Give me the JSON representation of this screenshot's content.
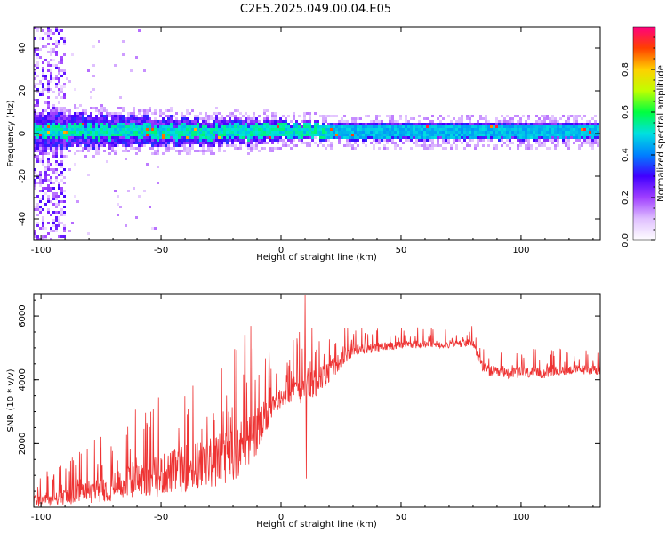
{
  "title": "C2E5.2025.049.00.04.E05",
  "chart_data": [
    {
      "type": "heatmap",
      "name": "spectrogram",
      "xlabel": "Height of straight line (km)",
      "ylabel": "Frequency (Hz)",
      "xlim": [
        -103,
        133
      ],
      "ylim": [
        -50,
        50
      ],
      "x_ticks": [
        -100,
        -50,
        0,
        50,
        100
      ],
      "y_ticks": [
        -40,
        -20,
        0,
        20,
        40
      ],
      "colorbar": {
        "label": "Normalized spectral amplitude",
        "range": [
          0,
          1
        ],
        "ticks": [
          "0.0",
          "0.2",
          "0.4",
          "0.6",
          "0.8"
        ],
        "colors": [
          "#ffffff",
          "#e0c0ff",
          "#a040ff",
          "#4000ff",
          "#0080ff",
          "#00e0e0",
          "#00ff40",
          "#c0ff00",
          "#ffd000",
          "#ff4000",
          "#ff0080"
        ]
      },
      "band": {
        "center_hz": 1,
        "core_width_hz": 6,
        "noise_region_x": [
          -103,
          -90
        ]
      }
    },
    {
      "type": "line",
      "name": "snr",
      "xlabel": "Height of straight line (km)",
      "ylabel": "SNR (10 * v/v)",
      "xlim": [
        -103,
        133
      ],
      "ylim": [
        0,
        6700
      ],
      "x_ticks": [
        -100,
        -50,
        0,
        50,
        100
      ],
      "y_ticks": [
        2000,
        4000,
        6000
      ],
      "color": "#ee3333",
      "envelope": {
        "x": [
          -103,
          -95,
          -90,
          -80,
          -70,
          -60,
          -50,
          -40,
          -30,
          -20,
          -15,
          -10,
          -5,
          0,
          5,
          10,
          15,
          20,
          25,
          30,
          40,
          50,
          60,
          70,
          80,
          82,
          85,
          90,
          100,
          110,
          120,
          133
        ],
        "baseline": [
          200,
          250,
          300,
          450,
          600,
          800,
          950,
          1150,
          1300,
          1600,
          1900,
          2300,
          2900,
          3400,
          3600,
          3800,
          3900,
          4200,
          4600,
          4900,
          5000,
          5100,
          5100,
          5100,
          5150,
          4700,
          4300,
          4200,
          4200,
          4200,
          4300,
          4300
        ],
        "amplitude": [
          400,
          450,
          500,
          700,
          900,
          1100,
          1300,
          1500,
          1600,
          1700,
          1800,
          1600,
          900,
          500,
          900,
          1200,
          900,
          700,
          500,
          350,
          300,
          250,
          250,
          250,
          250,
          350,
          350,
          350,
          350,
          350,
          300,
          300
        ]
      },
      "spikes": [
        {
          "x": -15,
          "y": 5400
        },
        {
          "x": 10,
          "y": 6650
        },
        {
          "x": 10.5,
          "y": 900
        },
        {
          "x": -5,
          "y": 5000
        }
      ]
    }
  ]
}
